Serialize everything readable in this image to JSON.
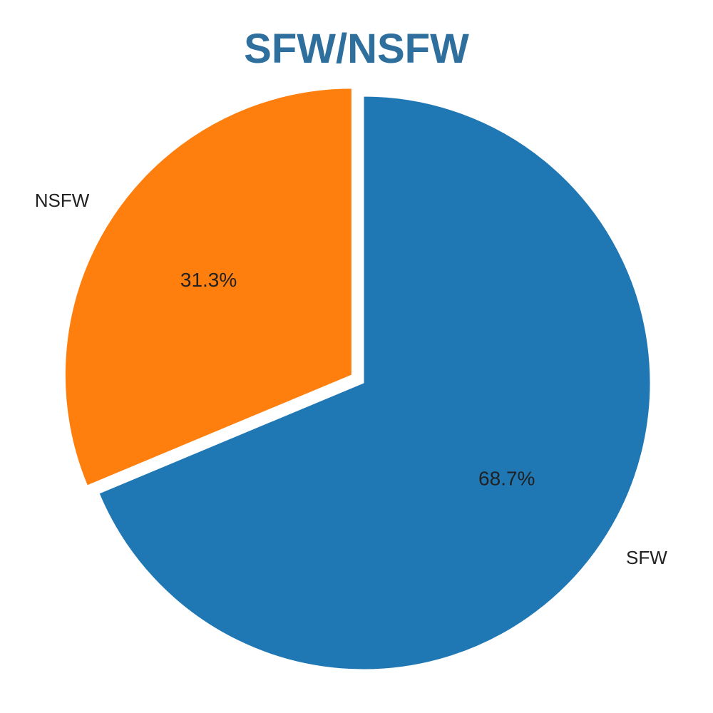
{
  "chart_data": {
    "type": "pie",
    "title": "SFW/NSFW",
    "title_color": "#2e6f9e",
    "slices": [
      {
        "label": "SFW",
        "value": 68.7,
        "pct_label": "68.7%",
        "color": "#1f77b4"
      },
      {
        "label": "NSFW",
        "value": 31.3,
        "pct_label": "31.3%",
        "color": "#ff7f0e"
      }
    ],
    "start_angle_deg": 90,
    "direction": "clockwise",
    "exploded": "NSFW",
    "legend": "none"
  }
}
